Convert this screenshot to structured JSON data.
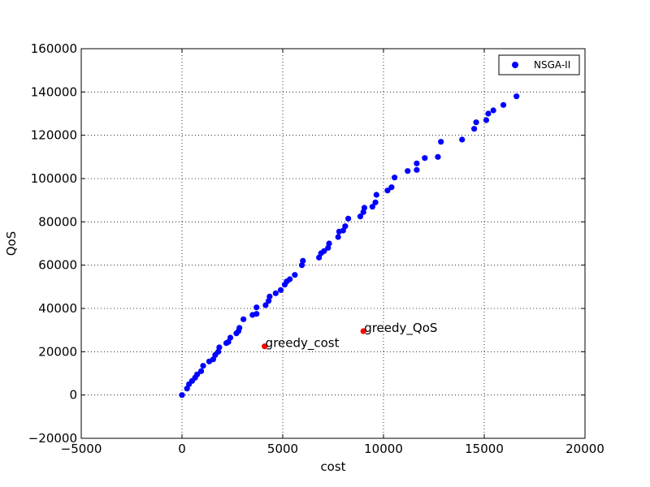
{
  "chart_data": {
    "type": "scatter",
    "xlabel": "cost",
    "ylabel": "QoS",
    "xlim": [
      -5000,
      20000
    ],
    "ylim": [
      -20000,
      160000
    ],
    "x_ticks": [
      -5000,
      0,
      5000,
      10000,
      15000,
      20000
    ],
    "y_ticks": [
      -20000,
      0,
      20000,
      40000,
      60000,
      80000,
      100000,
      120000,
      140000,
      160000
    ],
    "x_tick_labels": [
      "−5000",
      "0",
      "5000",
      "10000",
      "15000",
      "20000"
    ],
    "y_tick_labels": [
      "−20000",
      "0",
      "20000",
      "40000",
      "60000",
      "80000",
      "100000",
      "120000",
      "140000",
      "160000"
    ],
    "grid": true,
    "legend_position": "top-right",
    "series": [
      {
        "name": "NSGA-II",
        "color": "#0000ff",
        "points": [
          [
            0,
            0
          ],
          [
            250,
            3000
          ],
          [
            350,
            5000
          ],
          [
            500,
            6500
          ],
          [
            650,
            8000
          ],
          [
            750,
            9500
          ],
          [
            950,
            11000
          ],
          [
            1050,
            13500
          ],
          [
            1350,
            15500
          ],
          [
            1550,
            16500
          ],
          [
            1650,
            18500
          ],
          [
            1800,
            20000
          ],
          [
            1850,
            22000
          ],
          [
            2200,
            24000
          ],
          [
            2300,
            24500
          ],
          [
            2400,
            26500
          ],
          [
            2700,
            28500
          ],
          [
            2800,
            29500
          ],
          [
            2850,
            31000
          ],
          [
            3050,
            35000
          ],
          [
            3500,
            37000
          ],
          [
            3700,
            37500
          ],
          [
            3700,
            40500
          ],
          [
            4150,
            41500
          ],
          [
            4300,
            43500
          ],
          [
            4350,
            45500
          ],
          [
            4650,
            47000
          ],
          [
            4900,
            48500
          ],
          [
            5100,
            51000
          ],
          [
            5200,
            52500
          ],
          [
            5350,
            53500
          ],
          [
            5600,
            55500
          ],
          [
            5950,
            60000
          ],
          [
            6000,
            62000
          ],
          [
            6800,
            63500
          ],
          [
            6900,
            65500
          ],
          [
            7050,
            66500
          ],
          [
            7250,
            68000
          ],
          [
            7300,
            70000
          ],
          [
            7750,
            73000
          ],
          [
            7800,
            75500
          ],
          [
            8000,
            76000
          ],
          [
            8100,
            78000
          ],
          [
            8250,
            81500
          ],
          [
            8850,
            82500
          ],
          [
            9000,
            84500
          ],
          [
            9050,
            86500
          ],
          [
            9450,
            87000
          ],
          [
            9600,
            89000
          ],
          [
            9650,
            92500
          ],
          [
            10200,
            94500
          ],
          [
            10400,
            96000
          ],
          [
            10550,
            100500
          ],
          [
            11200,
            103500
          ],
          [
            11650,
            104000
          ],
          [
            11650,
            107000
          ],
          [
            12050,
            109500
          ],
          [
            12700,
            110000
          ],
          [
            12850,
            117000
          ],
          [
            13900,
            118000
          ],
          [
            14500,
            123000
          ],
          [
            14600,
            126000
          ],
          [
            15100,
            127000
          ],
          [
            15200,
            130000
          ],
          [
            15450,
            131500
          ],
          [
            15950,
            134000
          ],
          [
            16600,
            138000
          ]
        ]
      },
      {
        "name": "",
        "color": "#ff0000",
        "points": [
          [
            4100,
            22500
          ],
          [
            9000,
            29500
          ]
        ]
      }
    ],
    "annotations": [
      {
        "text": "greedy_cost",
        "x": 4100,
        "y": 22500
      },
      {
        "text": "greedy_QoS",
        "x": 9000,
        "y": 29500
      }
    ]
  }
}
